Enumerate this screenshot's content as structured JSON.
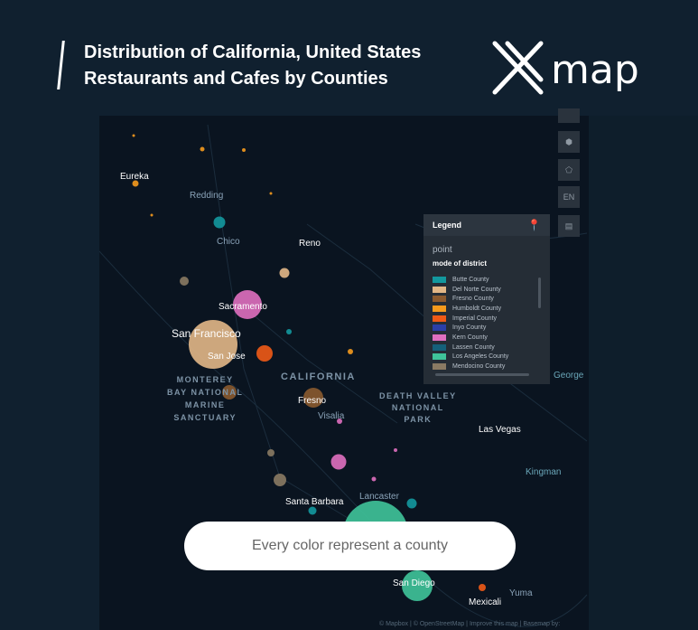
{
  "header": {
    "title_line1": "Distribution of California, United States",
    "title_line2": "Restaurants and Cafes by Counties",
    "logo_text": "map"
  },
  "map": {
    "labels": {
      "eureka": "Eureka",
      "redding": "Redding",
      "chico": "Chico",
      "reno": "Reno",
      "sacramento": "Sacramento",
      "san_francisco": "San Francisco",
      "san_jose": "San Jose",
      "monterey": "MONTEREY\nBAY NATIONAL\nMARINE\nSANCTUARY",
      "california": "CALIFORNIA",
      "fresno": "Fresno",
      "visalia": "Visalia",
      "death_valley": "DEATH VALLEY\nNATIONAL\nPARK",
      "las_vegas": "Las Vegas",
      "kingman": "Kingman",
      "santa_barbara": "Santa Barbara",
      "lancaster": "Lancaster",
      "san_diego": "San Diego",
      "mexicali": "Mexicali",
      "yuma": "Yuma",
      "george": "George"
    },
    "controls": {
      "language": "EN"
    },
    "attribution": "© Mapbox | © OpenStreetMap | Improve this map | Basemap by:"
  },
  "legend": {
    "title": "Legend",
    "layer": "point",
    "field": "mode of district",
    "items": [
      {
        "label": "Butte County",
        "color": "#13989e"
      },
      {
        "label": "Del Norte County",
        "color": "#e2b787"
      },
      {
        "label": "Fresno County",
        "color": "#8a5a2f"
      },
      {
        "label": "Humboldt County",
        "color": "#f59a1d"
      },
      {
        "label": "Imperial County",
        "color": "#ef5a16"
      },
      {
        "label": "Inyo County",
        "color": "#2b3fa8"
      },
      {
        "label": "Kern County",
        "color": "#df6fbf"
      },
      {
        "label": "Lassen County",
        "color": "#15607a"
      },
      {
        "label": "Los Angeles County",
        "color": "#3fc49a"
      },
      {
        "label": "Mendocino County",
        "color": "#8a7a63"
      }
    ]
  },
  "caption": "Every color represent a county"
}
